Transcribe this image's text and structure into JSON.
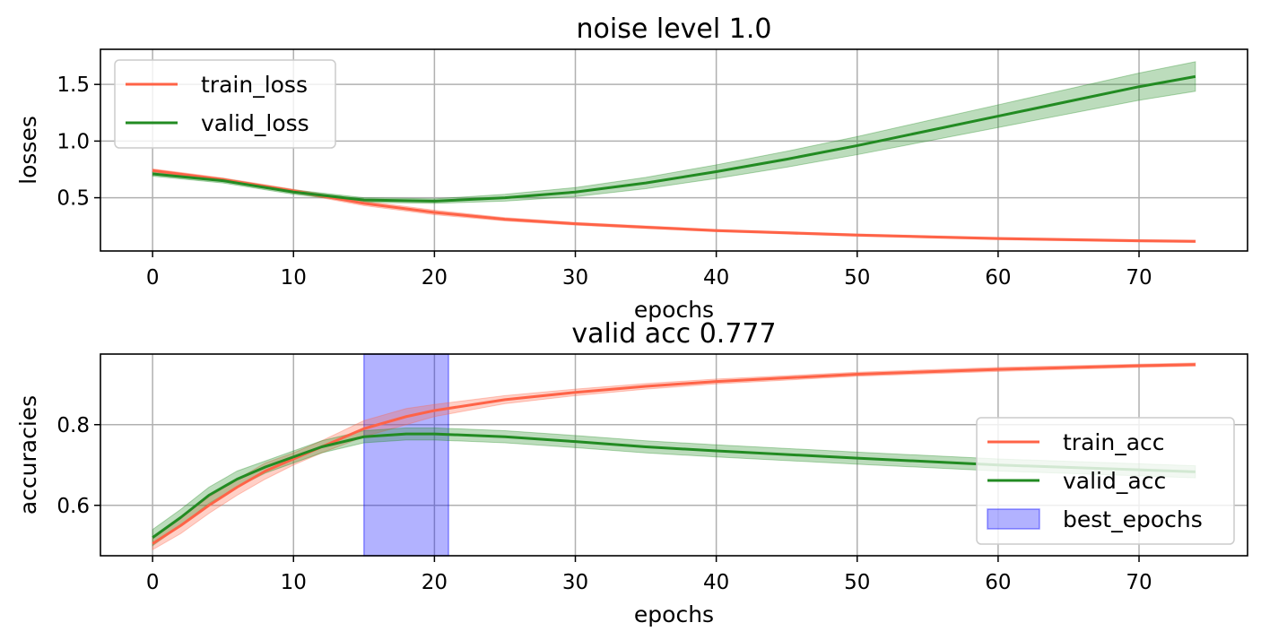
{
  "chart_data": [
    {
      "type": "line",
      "title": "noise level 1.0",
      "xlabel": "epochs",
      "ylabel": "losses",
      "xlim": [
        -3.7,
        77.7
      ],
      "ylim": [
        0.03,
        1.81
      ],
      "xticks": [
        0,
        10,
        20,
        30,
        40,
        50,
        60,
        70
      ],
      "yticks": [
        0.5,
        1.0,
        1.5
      ],
      "ytick_labels": [
        "0.5",
        "1.0",
        "1.5"
      ],
      "grid": true,
      "legend_position": "upper-left",
      "series": [
        {
          "name": "train_loss",
          "color": "#ff6347",
          "x": [
            0,
            5,
            10,
            15,
            20,
            25,
            30,
            35,
            40,
            45,
            50,
            55,
            60,
            65,
            70,
            74
          ],
          "y": [
            0.74,
            0.66,
            0.56,
            0.45,
            0.37,
            0.31,
            0.27,
            0.24,
            0.21,
            0.19,
            0.17,
            0.155,
            0.14,
            0.13,
            0.12,
            0.115
          ],
          "band": [
            0.015,
            0.015,
            0.015,
            0.02,
            0.02,
            0.015,
            0.012,
            0.012,
            0.01,
            0.01,
            0.01,
            0.01,
            0.01,
            0.01,
            0.01,
            0.01
          ]
        },
        {
          "name": "valid_loss",
          "color": "#228b22",
          "x": [
            0,
            5,
            10,
            15,
            20,
            25,
            30,
            35,
            40,
            45,
            50,
            55,
            60,
            65,
            70,
            74
          ],
          "y": [
            0.71,
            0.65,
            0.55,
            0.48,
            0.47,
            0.5,
            0.55,
            0.63,
            0.73,
            0.84,
            0.96,
            1.09,
            1.22,
            1.35,
            1.48,
            1.57
          ],
          "band": [
            0.02,
            0.02,
            0.02,
            0.02,
            0.02,
            0.03,
            0.04,
            0.05,
            0.06,
            0.07,
            0.08,
            0.09,
            0.1,
            0.11,
            0.12,
            0.13
          ]
        }
      ]
    },
    {
      "type": "line",
      "title": "valid acc 0.777",
      "xlabel": "epochs",
      "ylabel": "accuracies",
      "xlim": [
        -3.7,
        77.7
      ],
      "ylim": [
        0.475,
        0.975
      ],
      "xticks": [
        0,
        10,
        20,
        30,
        40,
        50,
        60,
        70
      ],
      "yticks": [
        0.6,
        0.8
      ],
      "ytick_labels": [
        "0.6",
        "0.8"
      ],
      "grid": true,
      "legend_position": "center-right",
      "span": {
        "name": "best_epochs",
        "x_from": 15,
        "x_to": 21,
        "color": "#0000ff"
      },
      "series": [
        {
          "name": "train_acc",
          "color": "#ff6347",
          "x": [
            0,
            2,
            4,
            6,
            8,
            10,
            12,
            15,
            18,
            20,
            25,
            30,
            35,
            40,
            50,
            60,
            70,
            74
          ],
          "y": [
            0.505,
            0.55,
            0.6,
            0.645,
            0.685,
            0.715,
            0.745,
            0.79,
            0.82,
            0.835,
            0.862,
            0.88,
            0.895,
            0.907,
            0.925,
            0.937,
            0.946,
            0.949
          ],
          "band": [
            0.015,
            0.02,
            0.02,
            0.02,
            0.02,
            0.015,
            0.015,
            0.02,
            0.02,
            0.015,
            0.01,
            0.008,
            0.007,
            0.006,
            0.005,
            0.005,
            0.004,
            0.004
          ]
        },
        {
          "name": "valid_acc",
          "color": "#228b22",
          "x": [
            0,
            2,
            4,
            6,
            8,
            10,
            12,
            15,
            18,
            20,
            25,
            30,
            35,
            40,
            50,
            60,
            70,
            74
          ],
          "y": [
            0.52,
            0.57,
            0.625,
            0.665,
            0.695,
            0.72,
            0.745,
            0.77,
            0.777,
            0.777,
            0.77,
            0.758,
            0.745,
            0.735,
            0.717,
            0.7,
            0.688,
            0.683
          ],
          "band": [
            0.02,
            0.02,
            0.02,
            0.02,
            0.015,
            0.015,
            0.015,
            0.015,
            0.015,
            0.015,
            0.015,
            0.015,
            0.015,
            0.015,
            0.015,
            0.015,
            0.015,
            0.015
          ]
        }
      ]
    }
  ]
}
